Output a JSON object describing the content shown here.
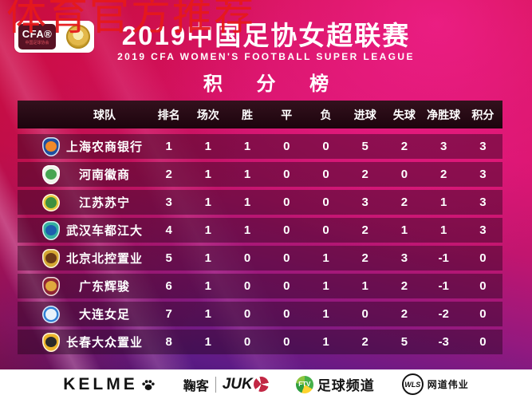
{
  "watermark": {
    "text": "体育官方推荐",
    "color": "#e6191c"
  },
  "header": {
    "logo": {
      "acronym": "CFA®",
      "org_cn": "中国足球协会"
    },
    "title_cn": "2019中国足协女超联赛",
    "title_en": "2019 CFA WOMEN'S FOOTBALL SUPER LEAGUE",
    "board_title": "积 分 榜"
  },
  "table": {
    "columns": [
      "球队",
      "排名",
      "场次",
      "胜",
      "平",
      "负",
      "进球",
      "失球",
      "净胜球",
      "积分"
    ],
    "rows": [
      {
        "team": "上海农商银行",
        "crest_shape": "shield",
        "crest_colors": [
          "#1e4fa0",
          "#f08a2a"
        ],
        "values": [
          1,
          1,
          1,
          0,
          0,
          5,
          2,
          3,
          3
        ]
      },
      {
        "team": "河南徽商",
        "crest_shape": "shield",
        "crest_colors": [
          "#eef3ea",
          "#46a552"
        ],
        "values": [
          2,
          1,
          1,
          0,
          0,
          2,
          0,
          2,
          3
        ]
      },
      {
        "team": "江苏苏宁",
        "crest_shape": "circle",
        "crest_colors": [
          "#e9c93b",
          "#3f8f3f"
        ],
        "values": [
          3,
          1,
          1,
          0,
          0,
          3,
          2,
          1,
          3
        ]
      },
      {
        "team": "武汉车都江大",
        "crest_shape": "shield",
        "crest_colors": [
          "#35b0a0",
          "#1d5fae"
        ],
        "values": [
          4,
          1,
          1,
          0,
          0,
          2,
          1,
          1,
          3
        ]
      },
      {
        "team": "北京北控置业",
        "crest_shape": "shield",
        "crest_colors": [
          "#d4a832",
          "#6b3a16"
        ],
        "values": [
          5,
          1,
          0,
          0,
          1,
          2,
          3,
          -1,
          0
        ]
      },
      {
        "team": "广东辉骏",
        "crest_shape": "shield",
        "crest_colors": [
          "#8f2433",
          "#e0a93e"
        ],
        "values": [
          6,
          1,
          0,
          0,
          1,
          1,
          2,
          -1,
          0
        ]
      },
      {
        "team": "大连女足",
        "crest_shape": "circle",
        "crest_colors": [
          "#2f7fd4",
          "#e8f2fa"
        ],
        "values": [
          7,
          1,
          0,
          0,
          1,
          0,
          2,
          -2,
          0
        ]
      },
      {
        "team": "长春大众置业",
        "crest_shape": "shield",
        "crest_colors": [
          "#edb52b",
          "#2a2a2a"
        ],
        "values": [
          8,
          1,
          0,
          0,
          1,
          2,
          5,
          -3,
          0
        ]
      }
    ]
  },
  "footer": {
    "sponsors": [
      {
        "label": "KELME",
        "icon": "paw-icon"
      },
      {
        "label_cn": "鞠客",
        "label_en": "JUK",
        "icon": "pinwheel-ball-icon"
      },
      {
        "icon_label": "FTV",
        "label": "足球频道",
        "icon": "ftv-globe-icon"
      },
      {
        "icon_label": "WLS",
        "label": "网道伟业",
        "icon": "wls-circle-icon"
      }
    ]
  },
  "colors": {
    "background_top": "#cf1048",
    "background_magenta": "#d61369",
    "background_bottom": "#2a135f",
    "header_bar": "#1c040d",
    "row_overlay": "rgba(28,2,22,0.42)",
    "watermark_red": "#e6191c",
    "text": "#ffffff"
  },
  "chart_data": {
    "type": "table",
    "title": "2019中国足协女超联赛 积分榜",
    "columns": [
      "球队",
      "排名",
      "场次",
      "胜",
      "平",
      "负",
      "进球",
      "失球",
      "净胜球",
      "积分"
    ],
    "rows": [
      [
        "上海农商银行",
        1,
        1,
        1,
        0,
        0,
        5,
        2,
        3,
        3
      ],
      [
        "河南徽商",
        2,
        1,
        1,
        0,
        0,
        2,
        0,
        2,
        3
      ],
      [
        "江苏苏宁",
        3,
        1,
        1,
        0,
        0,
        3,
        2,
        1,
        3
      ],
      [
        "武汉车都江大",
        4,
        1,
        1,
        0,
        0,
        2,
        1,
        1,
        3
      ],
      [
        "北京北控置业",
        5,
        1,
        0,
        0,
        1,
        2,
        3,
        -1,
        0
      ],
      [
        "广东辉骏",
        6,
        1,
        0,
        0,
        1,
        1,
        2,
        -1,
        0
      ],
      [
        "大连女足",
        7,
        1,
        0,
        0,
        1,
        0,
        2,
        -2,
        0
      ],
      [
        "长春大众置业",
        8,
        1,
        0,
        0,
        1,
        2,
        5,
        -3,
        0
      ]
    ]
  }
}
